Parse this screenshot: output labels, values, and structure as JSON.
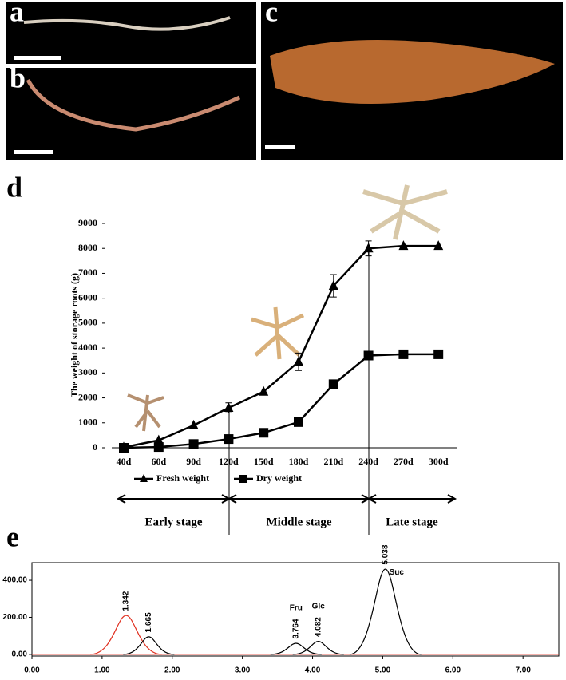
{
  "panels": [
    "a",
    "b",
    "c",
    "d",
    "e"
  ],
  "chart_data": [
    {
      "type": "line",
      "y_label": "The weight of storage roots (g)",
      "categories": [
        "40d",
        "60d",
        "90d",
        "120d",
        "150d",
        "180d",
        "210d",
        "240d",
        "270d",
        "300d"
      ],
      "series": [
        {
          "name": "Fresh weight",
          "color": "#000000",
          "marker": "triangle",
          "values": [
            20,
            300,
            900,
            1600,
            2250,
            3450,
            6500,
            8000,
            8100,
            8100
          ],
          "errors": [
            null,
            null,
            null,
            200,
            null,
            350,
            450,
            300,
            null,
            null
          ]
        },
        {
          "name": "Dry weight",
          "color": "#000000",
          "marker": "square",
          "values": [
            0,
            30,
            150,
            350,
            600,
            1030,
            2550,
            3700,
            3750,
            3750
          ]
        }
      ],
      "ylim": [
        0,
        9000
      ],
      "yticks": [
        0,
        1000,
        2000,
        3000,
        4000,
        5000,
        6000,
        7000,
        8000,
        9000
      ],
      "stages": [
        "Early stage",
        "Middle stage",
        "Late stage"
      ]
    },
    {
      "type": "chromatogram",
      "xlim": [
        0,
        7.51
      ],
      "ylim": [
        -9,
        495
      ],
      "xticks": [
        {
          "value": 0,
          "label": "0.00"
        },
        {
          "value": 1,
          "label": "1.00"
        },
        {
          "value": 2,
          "label": "2.00"
        },
        {
          "value": 3,
          "label": "3.00"
        },
        {
          "value": 4,
          "label": "4.00"
        },
        {
          "value": 5,
          "label": "5.00"
        },
        {
          "value": 6,
          "label": "6.00"
        },
        {
          "value": 7,
          "label": "7.00"
        }
      ],
      "yticks": [
        {
          "value": 0,
          "label": "0.00"
        },
        {
          "value": 200,
          "label": "200.00"
        },
        {
          "value": 400,
          "label": "400.00"
        }
      ],
      "peaks": [
        {
          "x": 1.342,
          "height": 210,
          "color": "#e03020"
        },
        {
          "x": 1.665,
          "height": 95,
          "color": "#000000"
        },
        {
          "x": 3.764,
          "height": 60,
          "color": "#000000",
          "name": "Fru"
        },
        {
          "x": 4.082,
          "height": 70,
          "color": "#000000",
          "name": "Glc"
        },
        {
          "x": 5.038,
          "height": 460,
          "color": "#000000",
          "name": "Suc"
        }
      ]
    }
  ]
}
